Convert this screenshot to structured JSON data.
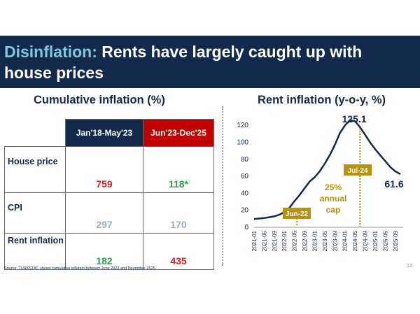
{
  "header": {
    "title_accent": "Disinflation:",
    "title_rest": " Rents have largely caught up with",
    "title_line2": "house prices"
  },
  "table": {
    "title": "Cumulative inflation (%)",
    "columns": [
      "Jan'18-May'23",
      "Jun'23-Dec'25"
    ],
    "rows": [
      {
        "label": "House price",
        "values": [
          "759",
          "118*"
        ],
        "colors": [
          "#e31e24",
          "#2e9e4a"
        ]
      },
      {
        "label": "CPI",
        "values": [
          "297",
          "170"
        ],
        "colors": [
          "#9aaed4",
          "#9aaed4"
        ]
      },
      {
        "label": "Rent inflation",
        "values": [
          "182",
          "435"
        ],
        "colors": [
          "#2e9e4a",
          "#e31e24"
        ]
      }
    ]
  },
  "chart_data": {
    "type": "line",
    "title": "Rent inflation (y-o-y, %)",
    "xlabel": "",
    "ylabel": "",
    "ylim": [
      0,
      130
    ],
    "yticks": [
      0,
      20,
      40,
      60,
      80,
      100,
      120
    ],
    "xticks": [
      "2021-01",
      "2021-05",
      "2021-09",
      "2022-01",
      "2022-05",
      "2022-09",
      "2023-01",
      "2023-05",
      "2023-09",
      "2024-01",
      "2024-05",
      "2024-09",
      "2025-01",
      "2025-05",
      "2025-09"
    ],
    "series": [
      {
        "color": "#13294b",
        "x": [
          "2021-01",
          "2021-03",
          "2021-05",
          "2021-07",
          "2021-09",
          "2021-11",
          "2022-01",
          "2022-03",
          "2022-05",
          "2022-07",
          "2022-09",
          "2022-11",
          "2023-01",
          "2023-03",
          "2023-05",
          "2023-07",
          "2023-09",
          "2023-11",
          "2024-01",
          "2024-03",
          "2024-05",
          "2024-07",
          "2024-09",
          "2024-11",
          "2025-01",
          "2025-03",
          "2025-05",
          "2025-07",
          "2025-09",
          "2025-11"
        ],
        "values": [
          9,
          9.5,
          10,
          11,
          12,
          14,
          17,
          22,
          30,
          37,
          45,
          53,
          58,
          65,
          74,
          84,
          96,
          110,
          119,
          125.1,
          124,
          117,
          108,
          99,
          91,
          84,
          77,
          70,
          65,
          61.6
        ]
      }
    ],
    "annotations": {
      "peak_label": "125.1",
      "end_label": "61.6",
      "markers": [
        {
          "label": "Jun-22",
          "x": "2022-06"
        },
        {
          "label": "Jul-24",
          "x": "2024-07"
        }
      ],
      "cap_text": [
        "25%",
        "annual",
        "cap"
      ],
      "marker_color": "#b8920a"
    }
  },
  "footer": {
    "source": "Source: TURKSTAT, shows cumulative inflation between June 2023 and November 2025.",
    "page": "12"
  }
}
